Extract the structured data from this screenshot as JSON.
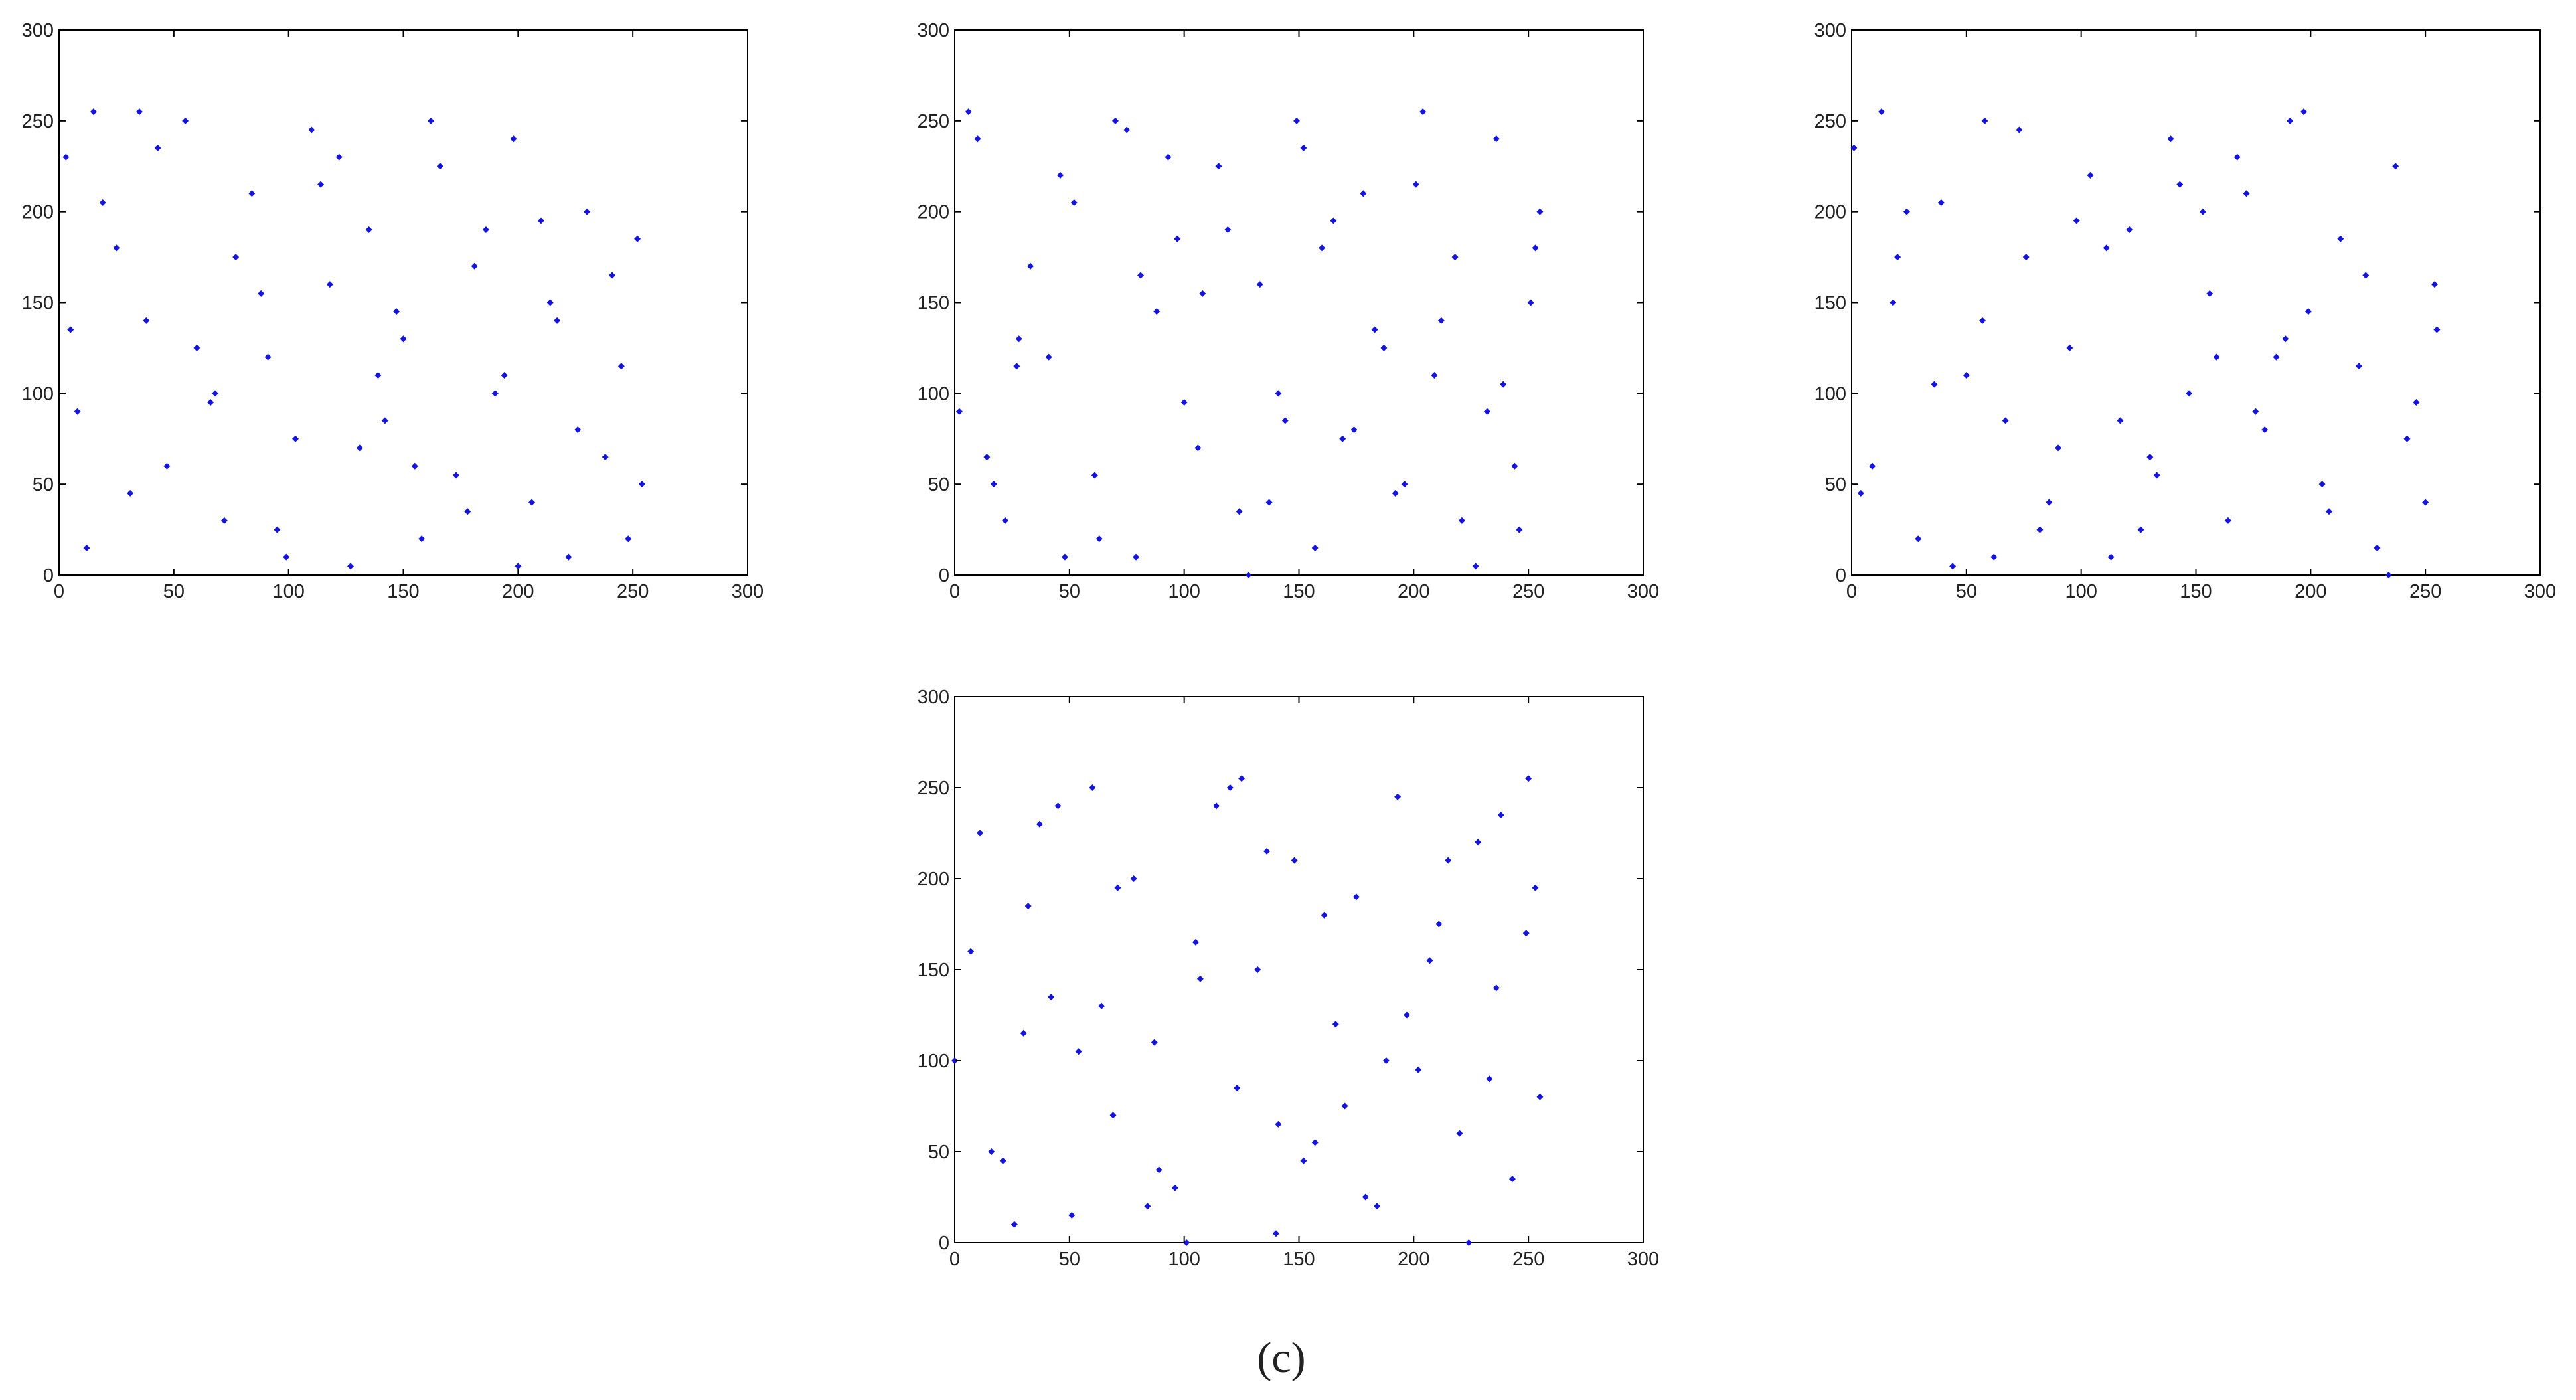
{
  "caption": "(c)",
  "chart_data": [
    {
      "type": "scatter",
      "color": "#1414dc",
      "xlim": [
        0,
        300
      ],
      "ylim": [
        0,
        300
      ],
      "xticks": [
        0,
        50,
        100,
        150,
        200,
        250,
        300
      ],
      "yticks": [
        0,
        50,
        100,
        150,
        200,
        250,
        300
      ],
      "series": [
        {
          "x": [
            3,
            12,
            25,
            38,
            47,
            55,
            66,
            72,
            84,
            91,
            103,
            110,
            118,
            127,
            135,
            142,
            150,
            158,
            166,
            173,
            181,
            190,
            198,
            206,
            214,
            222,
            230,
            238,
            245,
            252,
            8,
            19,
            31,
            43,
            60,
            77,
            95,
            114,
            131,
            147,
            162,
            178,
            194,
            210,
            226,
            241,
            254,
            5,
            35,
            68,
            99,
            122,
            155,
            186,
            217,
            248,
            15,
            88,
            139,
            200
          ],
          "values": [
            230,
            15,
            180,
            140,
            60,
            250,
            95,
            30,
            210,
            120,
            75,
            245,
            160,
            5,
            190,
            85,
            130,
            20,
            225,
            55,
            170,
            100,
            240,
            40,
            150,
            10,
            200,
            65,
            115,
            185,
            90,
            205,
            45,
            235,
            125,
            175,
            25,
            215,
            70,
            145,
            250,
            35,
            110,
            195,
            80,
            165,
            50,
            135,
            255,
            100,
            10,
            230,
            60,
            190,
            140,
            20,
            255,
            155,
            110,
            5
          ]
        }
      ]
    },
    {
      "type": "scatter",
      "color": "#1414dc",
      "xlim": [
        0,
        300
      ],
      "ylim": [
        0,
        300
      ],
      "xticks": [
        0,
        50,
        100,
        150,
        200,
        250,
        300
      ],
      "yticks": [
        0,
        50,
        100,
        150,
        200,
        250,
        300
      ],
      "series": [
        {
          "x": [
            2,
            10,
            22,
            33,
            41,
            52,
            61,
            70,
            79,
            88,
            97,
            106,
            115,
            124,
            133,
            141,
            149,
            157,
            165,
            174,
            183,
            192,
            201,
            209,
            218,
            227,
            236,
            244,
            251,
            255,
            6,
            17,
            28,
            46,
            63,
            81,
            100,
            119,
            137,
            152,
            169,
            187,
            204,
            221,
            239,
            253,
            14,
            48,
            75,
            108,
            144,
            178,
            212,
            246,
            27,
            93,
            128,
            160,
            196,
            232
          ],
          "values": [
            90,
            240,
            30,
            170,
            120,
            205,
            55,
            250,
            10,
            145,
            185,
            70,
            225,
            35,
            160,
            100,
            250,
            15,
            195,
            80,
            135,
            45,
            215,
            110,
            175,
            5,
            240,
            60,
            150,
            200,
            255,
            50,
            130,
            220,
            20,
            165,
            95,
            190,
            40,
            235,
            75,
            125,
            255,
            30,
            105,
            180,
            65,
            10,
            245,
            155,
            85,
            210,
            140,
            25,
            115,
            230,
            0,
            180,
            50,
            90
          ]
        }
      ]
    },
    {
      "type": "scatter",
      "color": "#1414dc",
      "xlim": [
        0,
        300
      ],
      "ylim": [
        0,
        300
      ],
      "xticks": [
        0,
        50,
        100,
        150,
        200,
        250,
        300
      ],
      "yticks": [
        0,
        50,
        100,
        150,
        200,
        250,
        300
      ],
      "series": [
        {
          "x": [
            1,
            9,
            18,
            29,
            39,
            50,
            58,
            67,
            76,
            86,
            95,
            104,
            113,
            121,
            130,
            139,
            147,
            156,
            164,
            172,
            180,
            189,
            197,
            205,
            213,
            221,
            229,
            237,
            246,
            254,
            4,
            24,
            44,
            57,
            73,
            90,
            111,
            126,
            143,
            159,
            176,
            191,
            208,
            224,
            242,
            255,
            13,
            36,
            62,
            98,
            133,
            168,
            199,
            234,
            20,
            82,
            117,
            153,
            185,
            250
          ],
          "values": [
            235,
            60,
            150,
            20,
            205,
            110,
            250,
            85,
            175,
            40,
            125,
            220,
            10,
            190,
            65,
            240,
            100,
            155,
            30,
            210,
            80,
            130,
            255,
            50,
            185,
            115,
            15,
            225,
            95,
            160,
            45,
            200,
            5,
            140,
            245,
            70,
            180,
            25,
            215,
            120,
            90,
            250,
            35,
            165,
            75,
            135,
            255,
            105,
            10,
            195,
            55,
            230,
            145,
            0,
            175,
            25,
            85,
            200,
            120,
            40
          ]
        }
      ]
    },
    {
      "type": "scatter",
      "color": "#1414dc",
      "xlim": [
        0,
        300
      ],
      "ylim": [
        0,
        300
      ],
      "xticks": [
        0,
        50,
        100,
        150,
        200,
        250,
        300
      ],
      "yticks": [
        0,
        50,
        100,
        150,
        200,
        250,
        300
      ],
      "series": [
        {
          "x": [
            0,
            11,
            21,
            32,
            42,
            51,
            60,
            69,
            78,
            87,
            96,
            105,
            114,
            123,
            132,
            140,
            148,
            157,
            166,
            175,
            184,
            193,
            202,
            211,
            220,
            228,
            236,
            243,
            250,
            255,
            7,
            26,
            37,
            54,
            71,
            89,
            107,
            125,
            141,
            161,
            179,
            197,
            215,
            233,
            249,
            16,
            45,
            64,
            101,
            136,
            170,
            207,
            238,
            30,
            84,
            120,
            152,
            188,
            224,
            253
          ],
          "values": [
            100,
            225,
            45,
            185,
            135,
            15,
            250,
            70,
            200,
            110,
            30,
            165,
            240,
            85,
            150,
            5,
            210,
            55,
            120,
            190,
            20,
            245,
            95,
            175,
            60,
            220,
            140,
            35,
            255,
            80,
            160,
            10,
            230,
            105,
            195,
            40,
            145,
            255,
            65,
            180,
            25,
            125,
            210,
            90,
            170,
            50,
            240,
            130,
            0,
            215,
            75,
            155,
            235,
            115,
            20,
            250,
            45,
            100,
            0,
            195
          ]
        }
      ]
    }
  ]
}
